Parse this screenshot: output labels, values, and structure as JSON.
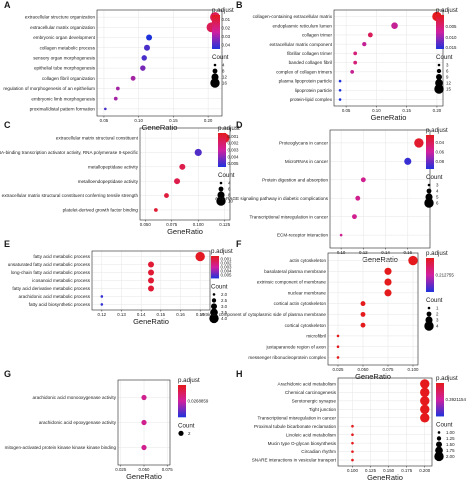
{
  "chart_data": [
    {
      "label": "A",
      "type": "scatter",
      "categories": [
        "extracellular structure organization",
        "extracellular matrix organization",
        "embryonic organ development",
        "collagen metabolic process",
        "sensory organ morphogenesis",
        "epithelial tube morphogenesis",
        "collagen fibril organization",
        "regulation of morphogenesis of an epithelium",
        "embryonic limb morphogenesis",
        "proximal/distal pattern formation"
      ],
      "x": [
        0.21,
        0.205,
        0.115,
        0.112,
        0.108,
        0.106,
        0.092,
        0.07,
        0.067,
        0.052
      ],
      "count": [
        17,
        17,
        10,
        10,
        9,
        9,
        8,
        6,
        6,
        4
      ],
      "padj": [
        0.015,
        0.015,
        0.045,
        0.04,
        0.04,
        0.035,
        0.03,
        0.03,
        0.03,
        0.04
      ],
      "xlim": [
        0.04,
        0.22
      ],
      "xticks": [
        "0.05",
        "0.10",
        "0.15",
        "0.20"
      ],
      "xtick_vals": [
        0.05,
        0.1,
        0.15,
        0.2
      ],
      "xlabel": "GeneRatio",
      "padj_title": "p.adjust",
      "padj_range": [
        0.005,
        0.045
      ],
      "padj_ticks": [
        "0.01",
        "0.02",
        "0.03",
        "0.04"
      ],
      "padj_tick_vals": [
        0.01,
        0.02,
        0.03,
        0.04
      ],
      "count_title": "Count",
      "count_ticks": [
        "4",
        "8",
        "12",
        "16"
      ],
      "count_tick_vals": [
        4,
        8,
        12,
        16
      ]
    },
    {
      "label": "B",
      "type": "scatter",
      "categories": [
        "collagen-containing extracellular matrix",
        "endoplasmic reticulum lumen",
        "collagen trimer",
        "extracellular matrix component",
        "fibrillar collagen trimer",
        "banded collagen fibril",
        "complex of collagen trimers",
        "plasma lipoprotein particle",
        "lipoprotein particle",
        "protein-lipid complex"
      ],
      "x": [
        0.2,
        0.13,
        0.09,
        0.08,
        0.065,
        0.065,
        0.06,
        0.04,
        0.04,
        0.04
      ],
      "count": [
        15,
        10,
        7,
        6,
        5,
        5,
        5,
        3,
        3,
        3
      ],
      "padj": [
        0.0001,
        0.008,
        0.004,
        0.008,
        0.006,
        0.006,
        0.008,
        0.015,
        0.015,
        0.015
      ],
      "xlim": [
        0.03,
        0.21
      ],
      "xticks": [
        "0.05",
        "0.10",
        "0.15",
        "0.20"
      ],
      "xtick_vals": [
        0.05,
        0.1,
        0.15,
        0.2
      ],
      "xlabel": "GeneRatio",
      "padj_title": "p.adjust",
      "padj_range": [
        0,
        0.015
      ],
      "padj_ticks": [
        "0.005",
        "0.010",
        "0.015"
      ],
      "padj_tick_vals": [
        0.005,
        0.01,
        0.015
      ],
      "count_title": "Count",
      "count_ticks": [
        "3",
        "6",
        "9",
        "12",
        "15"
      ],
      "count_tick_vals": [
        3,
        6,
        9,
        12,
        15
      ]
    },
    {
      "label": "C",
      "type": "scatter",
      "categories": [
        "extracellular matrix structural constituent",
        "DNA-binding transcription activator activity, RNA polymerase II-specific",
        "metallopeptidase activity",
        "metalloendopeptidase activity",
        "extracellular matrix structural constituent conferring tensile strength",
        "platelet-derived growth factor binding"
      ],
      "x": [
        0.125,
        0.1,
        0.085,
        0.08,
        0.07,
        0.06
      ],
      "count": [
        10,
        8,
        7,
        7,
        6,
        5
      ],
      "padj": [
        0.0008,
        0.0048,
        0.0015,
        0.0015,
        0.0012,
        0.001
      ],
      "xlim": [
        0.045,
        0.13
      ],
      "xticks": [
        "0.050",
        "0.075",
        "0.100",
        "0.125"
      ],
      "xtick_vals": [
        0.05,
        0.075,
        0.1,
        0.125
      ],
      "xlabel": "GeneRatio",
      "padj_title": "p.adjust",
      "padj_range": [
        0.0005,
        0.0055
      ],
      "padj_ticks": [
        "0.001",
        "0.002",
        "0.003",
        "0.004",
        "0.005"
      ],
      "padj_tick_vals": [
        0.001,
        0.002,
        0.003,
        0.004,
        0.005
      ],
      "count_title": "Count",
      "count_ticks": [
        "4",
        "6",
        "8",
        "10"
      ],
      "count_tick_vals": [
        4,
        6,
        8,
        10
      ]
    },
    {
      "label": "D",
      "type": "scatter",
      "categories": [
        "Proteoglycans in cancer",
        "MicroRNAs in cancer",
        "Protein digestion and absorption",
        "AGE-RAGE signaling pathway in diabetic complications",
        "Transcriptional misregulation in cancer",
        "ECM-receptor interaction"
      ],
      "x": [
        0.17,
        0.16,
        0.12,
        0.115,
        0.112,
        0.1
      ],
      "count": [
        6,
        5,
        4,
        4,
        4,
        3
      ],
      "padj": [
        0.03,
        0.09,
        0.06,
        0.06,
        0.06,
        0.06
      ],
      "xlim": [
        0.09,
        0.18
      ],
      "xticks": [
        "0.10",
        "0.12",
        "0.14",
        "0.16"
      ],
      "xtick_vals": [
        0.1,
        0.12,
        0.14,
        0.16
      ],
      "xlabel": "GeneRatio",
      "padj_title": "p.adjust",
      "padj_range": [
        0.025,
        0.095
      ],
      "padj_ticks": [
        "0.04",
        "0.06",
        "0.08"
      ],
      "padj_tick_vals": [
        0.04,
        0.06,
        0.08
      ],
      "count_title": "Count",
      "count_ticks": [
        "3",
        "4",
        "5",
        "6"
      ],
      "count_tick_vals": [
        3,
        4,
        5,
        6
      ]
    },
    {
      "label": "E",
      "type": "scatter",
      "categories": [
        "fatty acid metabolic process",
        "unsaturated fatty acid metabolic process",
        "long-chain fatty acid metabolic process",
        "icosanoid metabolic process",
        "fatty acid derivative metabolic process",
        "arachidonic acid metabolic process",
        "fatty acid biosynthetic process"
      ],
      "x": [
        0.17,
        0.145,
        0.145,
        0.145,
        0.145,
        0.12,
        0.12
      ],
      "count": [
        4,
        3,
        3,
        3,
        3,
        2,
        2
      ],
      "padj": [
        0.0005,
        0.0009,
        0.0009,
        0.0009,
        0.0009,
        0.0055,
        0.0055
      ],
      "xlim": [
        0.115,
        0.175
      ],
      "xticks": [
        "0.12",
        "0.13",
        "0.14",
        "0.15",
        "0.16",
        "0.17"
      ],
      "xtick_vals": [
        0.12,
        0.13,
        0.14,
        0.15,
        0.16,
        0.17
      ],
      "xlabel": "GeneRatio",
      "padj_title": "p.adjust",
      "padj_range": [
        0.0003,
        0.0058
      ],
      "padj_ticks": [
        "0.005",
        "0.004",
        "0.003",
        "0.002",
        "0.001"
      ],
      "padj_tick_vals": [
        0.005,
        0.004,
        0.003,
        0.002,
        0.001
      ],
      "count_title": "Count",
      "count_ticks": [
        "2.0",
        "2.5",
        "3.0",
        "3.5",
        "4.0"
      ],
      "count_tick_vals": [
        2.0,
        2.5,
        3.0,
        3.5,
        4.0
      ]
    },
    {
      "label": "F",
      "type": "scatter",
      "categories": [
        "actin cytoskeleton",
        "basolateral plasma membrane",
        "extrinsic component of membrane",
        "nuclear membrane",
        "cortical actin cytoskeleton",
        "extrinsic component of cytoplasmic side of plasma membrane",
        "cortical cytoskeleton",
        "microfibril",
        "juxtaparanode region of axon",
        "messenger ribonucleoprotein complex"
      ],
      "x": [
        0.1,
        0.075,
        0.075,
        0.075,
        0.05,
        0.05,
        0.05,
        0.025,
        0.025,
        0.025
      ],
      "count": [
        4,
        3,
        3,
        3,
        2,
        2,
        2,
        1,
        1,
        1
      ],
      "padj": [
        0.2127,
        0.2127,
        0.2127,
        0.2127,
        0.2127,
        0.2127,
        0.2127,
        0.2127,
        0.2127,
        0.2127
      ],
      "xlim": [
        0.015,
        0.105
      ],
      "xticks": [
        "0.025",
        "0.050",
        "0.075",
        "0.100"
      ],
      "xtick_vals": [
        0.025,
        0.05,
        0.075,
        0.1
      ],
      "xlabel": "GeneRatio",
      "padj_title": "p.adjust",
      "padj_ticks": [
        "0.212755"
      ],
      "padj_range": [
        0.2127,
        0.2128
      ],
      "padj_tick_vals": [
        0.21275
      ],
      "count_title": "Count",
      "count_ticks": [
        "1",
        "2",
        "3",
        "4"
      ],
      "count_tick_vals": [
        1,
        2,
        3,
        4
      ]
    },
    {
      "label": "G",
      "type": "scatter",
      "categories": [
        "arachidonic acid monooxygenase activity",
        "arachidonic acid epoxygenase activity",
        "mitogen-activated protein kinase kinase kinase binding"
      ],
      "x": [
        0.05,
        0.05,
        0.05
      ],
      "count": [
        2,
        2,
        2
      ],
      "padj": [
        0.0269,
        0.0269,
        0.0269
      ],
      "xlim": [
        0.022,
        0.078
      ],
      "xticks": [
        "0.025",
        "0.050",
        "0.075"
      ],
      "xtick_vals": [
        0.025,
        0.05,
        0.075
      ],
      "xlabel": "GeneRatio",
      "padj_title": "p.adjust",
      "padj_ticks": [
        "0.0268859"
      ],
      "padj_range": [
        0.0268,
        0.027
      ],
      "padj_tick_vals": [
        0.026886
      ],
      "count_title": "Count",
      "count_ticks": [
        "2"
      ],
      "count_tick_vals": [
        2
      ]
    },
    {
      "label": "H",
      "type": "scatter",
      "categories": [
        "Arachidonic acid metabolism",
        "Chemical carcinogenesis",
        "Serotonergic synapse",
        "Tight junction",
        "Transcriptional misregulation in cancer",
        "Proximal tubule bicarbonate reclamation",
        "Linoleic acid metabolism",
        "Mucin type O-glycan biosynthesis",
        "Circadian rhythm",
        "SNARE interactions in vesicular transport"
      ],
      "x": [
        0.2,
        0.2,
        0.2,
        0.2,
        0.2,
        0.1,
        0.1,
        0.1,
        0.1,
        0.1
      ],
      "count": [
        2,
        2,
        2,
        2,
        2,
        1,
        1,
        1,
        1,
        1
      ],
      "padj": [
        0.392,
        0.392,
        0.392,
        0.392,
        0.392,
        0.392,
        0.392,
        0.392,
        0.392,
        0.392
      ],
      "xlim": [
        0.08,
        0.21
      ],
      "xticks": [
        "0.100",
        "0.125",
        "0.150",
        "0.175",
        "0.200"
      ],
      "xtick_vals": [
        0.1,
        0.125,
        0.15,
        0.175,
        0.2
      ],
      "xlabel": "GeneRatio",
      "padj_title": "p.adjust",
      "padj_ticks": [
        "0.3921154"
      ],
      "padj_range": [
        0.3921,
        0.3922
      ],
      "padj_tick_vals": [
        0.39212
      ],
      "count_title": "Count",
      "count_ticks": [
        "1.00",
        "1.25",
        "1.50",
        "1.75",
        "2.00"
      ],
      "count_tick_vals": [
        1.0,
        1.25,
        1.5,
        1.75,
        2.0
      ]
    }
  ]
}
